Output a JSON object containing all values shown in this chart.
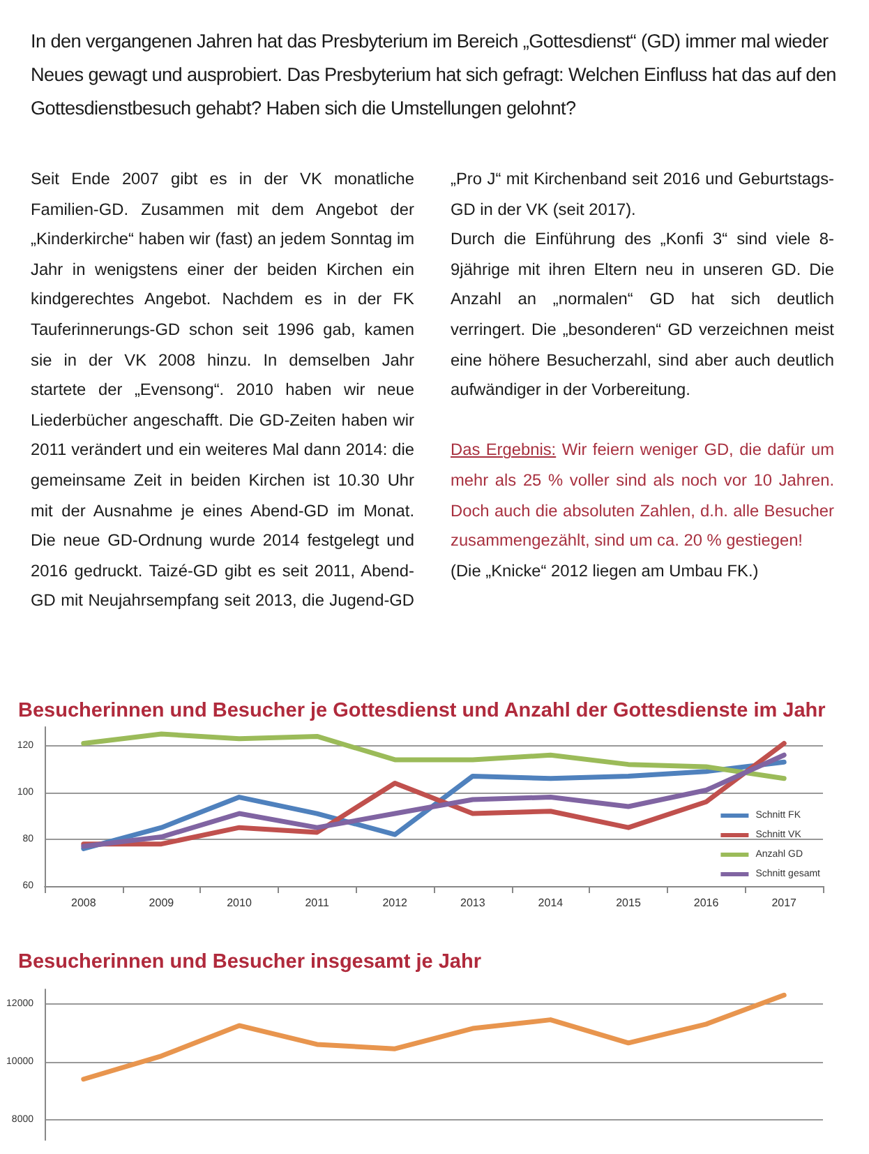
{
  "chart_data": [
    {
      "type": "line",
      "title": "Besucherinnen und Besucher je Gottesdienst und Anzahl der Gottesdienste im Jahr",
      "annotations": [
        "In den vergangenen Jahren hat das Presbyterium im Bereich „Gottesdienst“ (GD) immer mal wieder Neues gewagt und ausprobiert. Das Presbyterium hat sich gefragt: Welchen Einfluss hat das auf den Gottesdienstbesuch gehabt? Haben sich die Umstellungen gelohnt?",
        "Seit Ende 2007 gibt es in der VK monatliche Familien-GD. Zusammen mit dem Angebot der „Kinderkirche“ haben wir (fast) an jedem Sonntag im Jahr in wenigstens einer der beiden Kirchen ein kindgerechtes Angebot. Nachdem es in der FK Tauferinnerungs-GD schon seit 1996 gab, kamen sie in der VK 2008 hinzu. In demselben Jahr startete der „Evensong“. 2010 haben wir neue Liederbücher angeschafft. Die GD-Zeiten haben wir 2011 verändert und ein weiteres Mal dann 2014: die gemeinsame Zeit in beiden Kirchen ist 10.30 Uhr mit der Ausnahme je eines Abend-GD im Monat. Die neue GD-Ordnung wurde 2014 festgelegt und 2016 gedruckt. Taizé-GD gibt es seit 2011, Abend-GD mit Neujahrsempfang seit 2013, die Jugend-GD „Pro J“ mit Kirchenband seit 2016 und Geburtstags-GD in der VK (seit 2017).",
        "Durch die Einführung des „Konfi 3“ sind viele 8-9jährige mit ihren Eltern neu in unseren GD. Die Anzahl an „normalen“ GD hat sich deutlich verringert. Die „besonderen“ GD verzeichnen meist eine höhere Besucherzahl, sind aber auch deutlich aufwändiger in der Vorbereitung.",
        "Das Ergebnis:",
        "Wir feiern weniger GD, die dafür um mehr als 25 % voller sind als noch vor 10 Jahren. Doch auch die absoluten Zahlen, d.h. alle Besucher zusammengezählt, sind um ca. 20 % gestiegen!",
        "(Die „Knicke“ 2012 liegen am Umbau FK.)"
      ],
      "categories": [
        "2008",
        "2009",
        "2010",
        "2011",
        "2012",
        "2013",
        "2014",
        "2015",
        "2016",
        "2017"
      ],
      "series": [
        {
          "name": "Schnitt FK",
          "color": "#4f81bd",
          "values": [
            76,
            85,
            98,
            91,
            82,
            107,
            106,
            107,
            109,
            113
          ]
        },
        {
          "name": "Schnitt VK",
          "color": "#c0504d",
          "values": [
            78,
            78,
            85,
            83,
            104,
            91,
            92,
            85,
            96,
            121
          ]
        },
        {
          "name": "Anzahl GD",
          "color": "#9bbb59",
          "values": [
            121,
            125,
            123,
            124,
            114,
            114,
            116,
            112,
            111,
            106
          ]
        },
        {
          "name": "Schnitt gesamt",
          "color": "#8064a2",
          "values": [
            77,
            81,
            91,
            85,
            91,
            97,
            98,
            94,
            101,
            116
          ]
        }
      ],
      "ylim": [
        60,
        128
      ],
      "yticks": [
        60,
        80,
        100,
        120
      ],
      "grid": "y",
      "legend": "right",
      "marker": "none",
      "line_style": "solid"
    },
    {
      "type": "line",
      "title": "Besucherinnen und Besucher insgesamt je Jahr",
      "categories": [
        null,
        null,
        null,
        null,
        null,
        null,
        null,
        null,
        null,
        null
      ],
      "series": [
        {
          "color": "#e8954e",
          "values": [
            9400,
            10200,
            11250,
            10600,
            10450,
            11150,
            11450,
            10650,
            11300,
            12300
          ]
        }
      ],
      "ylim": [
        7300,
        12500
      ],
      "yticks": [
        8000,
        10000,
        12000
      ],
      "grid": "y",
      "tick_labels": "y",
      "marker": "none",
      "line_style": "solid"
    }
  ]
}
